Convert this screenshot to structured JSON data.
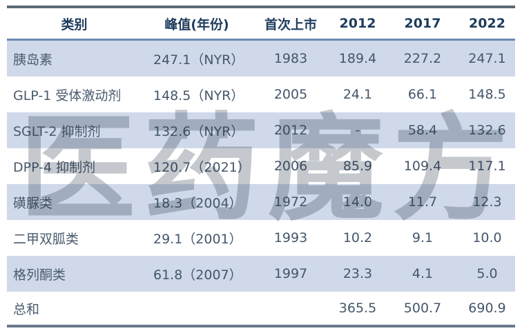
{
  "colors": {
    "top_border": "#5a6b74",
    "bottom_border": "#68798b",
    "header_underline": "#6b89b3",
    "stripe_row_bg": "#cfd9ea",
    "header_text": "#1e3c5c",
    "body_text": "#44566b"
  },
  "watermark": {
    "text": "医药魔方"
  },
  "table": {
    "headers": {
      "category": "类别",
      "peak": "峰值(年份)",
      "first_launch": "首次上市",
      "y2012": "2012",
      "y2017": "2017",
      "y2022": "2022"
    },
    "rows": [
      {
        "category": "胰岛素",
        "peak": "247.1（NYR）",
        "first_launch": "1983",
        "y2012": "189.4",
        "y2017": "227.2",
        "y2022": "247.1"
      },
      {
        "category": "GLP-1 受体激动剂",
        "peak": "148.5（NYR）",
        "first_launch": "2005",
        "y2012": "24.1",
        "y2017": "66.1",
        "y2022": "148.5"
      },
      {
        "category": "SGLT-2 抑制剂",
        "peak": "132.6（NYR）",
        "first_launch": "2012",
        "y2012": "-",
        "y2017": "58.4",
        "y2022": "132.6"
      },
      {
        "category": "DPP-4 抑制剂",
        "peak": "120.7（2021）",
        "first_launch": "2006",
        "y2012": "85.9",
        "y2017": "109.4",
        "y2022": "117.1"
      },
      {
        "category": "磺脲类",
        "peak": "18.3（2004）",
        "first_launch": "1972",
        "y2012": "14.0",
        "y2017": "11.7",
        "y2022": "12.3"
      },
      {
        "category": "二甲双胍类",
        "peak": "29.1（2001）",
        "first_launch": "1993",
        "y2012": "10.2",
        "y2017": "9.1",
        "y2022": "10.0"
      },
      {
        "category": "格列酮类",
        "peak": "61.8（2007）",
        "first_launch": "1997",
        "y2012": "23.3",
        "y2017": "4.1",
        "y2022": "5.0"
      },
      {
        "category": "总和",
        "peak": "",
        "first_launch": "",
        "y2012": "365.5",
        "y2017": "500.7",
        "y2022": "690.9"
      }
    ]
  },
  "chart_data": {
    "type": "table",
    "columns": [
      "类别",
      "峰值(年份)",
      "首次上市",
      "2012",
      "2017",
      "2022"
    ],
    "rows": [
      [
        "胰岛素",
        "247.1（NYR）",
        1983,
        189.4,
        227.2,
        247.1
      ],
      [
        "GLP-1 受体激动剂",
        "148.5（NYR）",
        2005,
        24.1,
        66.1,
        148.5
      ],
      [
        "SGLT-2 抑制剂",
        "132.6（NYR）",
        2012,
        null,
        58.4,
        132.6
      ],
      [
        "DPP-4 抑制剂",
        "120.7（2021）",
        2006,
        85.9,
        109.4,
        117.1
      ],
      [
        "磺脲类",
        "18.3（2004）",
        1972,
        14.0,
        11.7,
        12.3
      ],
      [
        "二甲双胍类",
        "29.1（2001）",
        1993,
        10.2,
        9.1,
        10.0
      ],
      [
        "格列酮类",
        "61.8（2007）",
        1997,
        23.3,
        4.1,
        5.0
      ],
      [
        "总和",
        null,
        null,
        365.5,
        500.7,
        690.9
      ]
    ],
    "notes": "striped data table, alternating light-blue rows, watermark 医药魔方 overlay"
  }
}
